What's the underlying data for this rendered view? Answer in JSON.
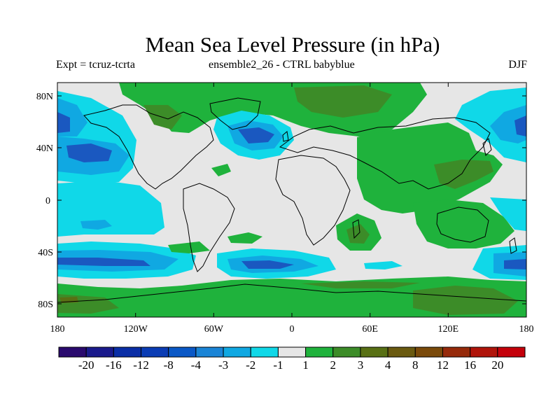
{
  "title": "Mean Sea Level Pressure (in hPa)",
  "subtitle_left": "Expt = tcruz-tcrta",
  "subtitle_center": "ensemble2_26 - CTRL babyblue",
  "subtitle_right": "DJF",
  "lat_ticks": [
    "80N",
    "40N",
    "0",
    "40S",
    "80S"
  ],
  "lon_ticks": [
    "180",
    "120W",
    "60W",
    "0",
    "60E",
    "120E",
    "180"
  ],
  "colorbar": {
    "colors": [
      "#2a0a6e",
      "#1a1a8c",
      "#0a2ea6",
      "#0a3cb4",
      "#0a58c6",
      "#1a84d6",
      "#10a8e2",
      "#10d8e8",
      "#e6e6e6",
      "#1fb23c",
      "#3c8c28",
      "#587014",
      "#6a5a10",
      "#7a4a0a",
      "#962a0a",
      "#b0140a",
      "#c4000a"
    ],
    "labels": [
      "-20",
      "-16",
      "-12",
      "-8",
      "-4",
      "-3",
      "-2",
      "-1",
      "1",
      "2",
      "3",
      "4",
      "8",
      "12",
      "16",
      "20"
    ]
  },
  "map_colors": {
    "neutral": "#e6e6e6",
    "neg_light": "#10d8e8",
    "neg_mid": "#10a8e2",
    "neg_strong": "#1a58c0",
    "pos_light": "#1fb23c",
    "pos_mid": "#3c8c28",
    "pos_strong": "#587014"
  }
}
